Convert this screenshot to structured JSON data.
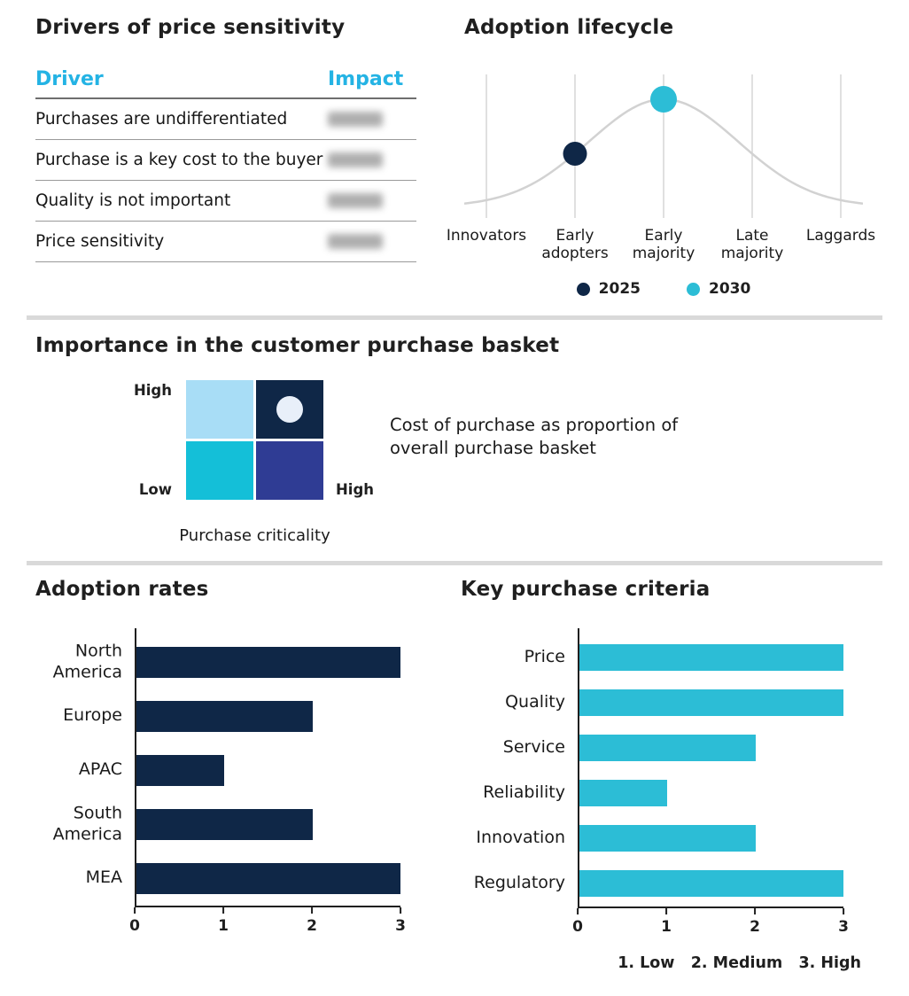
{
  "colors": {
    "navy": "#0f2747",
    "cyan": "#2cbdd6",
    "cyan_header": "#24b3e4",
    "light_blue": "#a8ddf6",
    "indigo": "#2f3c94",
    "divider_gray": "#d9d9d9"
  },
  "drivers": {
    "title": "Drivers of price sensitivity",
    "columns": {
      "driver": "Driver",
      "impact": "Impact"
    },
    "rows": [
      {
        "driver": "Purchases are undifferentiated",
        "impact_redacted": true
      },
      {
        "driver": "Purchase is a key cost to the buyer",
        "impact_redacted": true
      },
      {
        "driver": "Quality is not important",
        "impact_redacted": true
      },
      {
        "driver": "Price sensitivity",
        "impact_redacted": true
      }
    ]
  },
  "chart_data": [
    {
      "id": "adoption-lifecycle",
      "type": "line",
      "title": "Adoption lifecycle",
      "categories": [
        "Innovators",
        "Early adopters",
        "Early majority",
        "Late majority",
        "Laggards"
      ],
      "curve": {
        "shape": "bell",
        "peak_category": "Early majority",
        "color": "#d2d2d2"
      },
      "grid": "vertical-gridlines",
      "points": [
        {
          "series": "2025",
          "category": "Early adopters",
          "color": "#0f2747"
        },
        {
          "series": "2030",
          "category": "Early majority",
          "color": "#2cbdd6"
        }
      ],
      "legend": [
        {
          "label": "2025",
          "color": "#0f2747"
        },
        {
          "label": "2030",
          "color": "#2cbdd6"
        }
      ],
      "legend_position": "bottom"
    },
    {
      "id": "purchase-basket",
      "type": "heatmap",
      "title": "Importance in the customer purchase basket",
      "x_axis_label": "Purchase criticality",
      "x_max_label": "High",
      "y_max_label": "High",
      "y_min_label": "Low",
      "quadrant_colors": {
        "top_left": "#a8ddf6",
        "top_right": "#0f2747",
        "bottom_left": "#14bfd8",
        "bottom_right": "#2f3c94"
      },
      "marker": {
        "quadrant": "top_right",
        "color": "#e8eff9"
      },
      "annotation": "Cost of purchase as proportion of overall purchase basket"
    },
    {
      "id": "adoption-rates",
      "type": "bar",
      "title": "Adoption rates",
      "orientation": "horizontal",
      "categories": [
        "North America",
        "Europe",
        "APAC",
        "South America",
        "MEA"
      ],
      "values": [
        3,
        2,
        1,
        2,
        3
      ],
      "bar_color": "#0f2747",
      "xlim": [
        0,
        3
      ],
      "ticks": [
        0,
        1,
        2,
        3
      ]
    },
    {
      "id": "key-purchase-criteria",
      "type": "bar",
      "title": "Key purchase criteria",
      "orientation": "horizontal",
      "categories": [
        "Price",
        "Quality",
        "Service",
        "Reliability",
        "Innovation",
        "Regulatory"
      ],
      "values": [
        3,
        3,
        2,
        1,
        2,
        3
      ],
      "bar_color": "#2cbdd6",
      "xlim": [
        0,
        3
      ],
      "ticks": [
        0,
        1,
        2,
        3
      ],
      "scale_note": "1. Low   2. Medium   3. High"
    }
  ]
}
